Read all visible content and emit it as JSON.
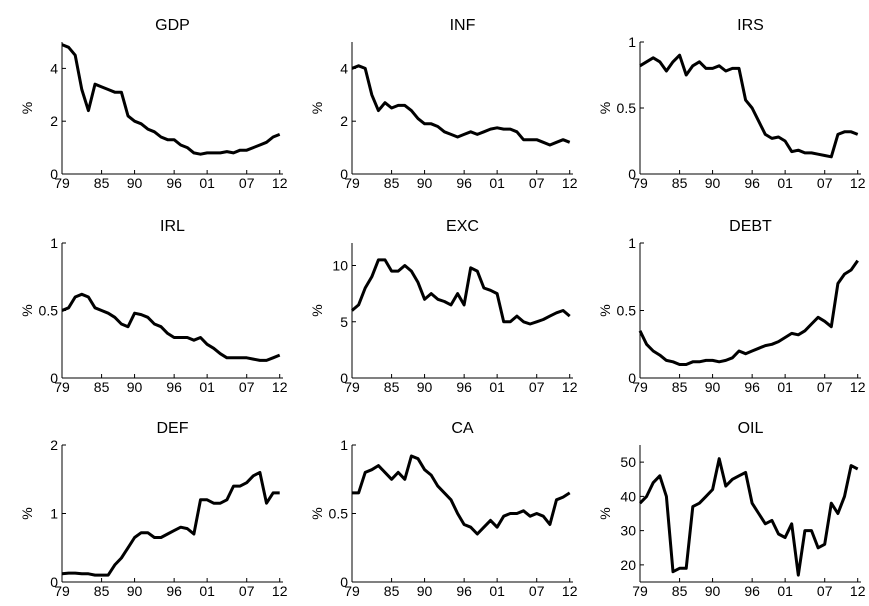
{
  "chart_data": [
    {
      "type": "line",
      "title": "GDP",
      "y_label": "%",
      "color": "#000000",
      "x": [
        1979,
        1980,
        1981,
        1982,
        1983,
        1984,
        1985,
        1986,
        1987,
        1988,
        1989,
        1990,
        1991,
        1992,
        1993,
        1994,
        1995,
        1996,
        1997,
        1998,
        1999,
        2000,
        2001,
        2002,
        2003,
        2004,
        2005,
        2006,
        2007,
        2008,
        2009,
        2010,
        2011,
        2012
      ],
      "values": [
        4.9,
        4.8,
        4.5,
        3.2,
        2.4,
        3.4,
        3.3,
        3.2,
        3.1,
        3.1,
        2.2,
        2.0,
        1.9,
        1.7,
        1.6,
        1.4,
        1.3,
        1.3,
        1.1,
        1.0,
        0.8,
        0.75,
        0.8,
        0.8,
        0.8,
        0.85,
        0.8,
        0.9,
        0.9,
        1.0,
        1.1,
        1.2,
        1.4,
        1.5
      ],
      "xlim": [
        1979,
        2012.5
      ],
      "xticks": [
        {
          "value": 1979,
          "label": "79"
        },
        {
          "value": 1985,
          "label": "85"
        },
        {
          "value": 1990,
          "label": "90"
        },
        {
          "value": 1996,
          "label": "96"
        },
        {
          "value": 2001,
          "label": "01"
        },
        {
          "value": 2007,
          "label": "07"
        },
        {
          "value": 2012,
          "label": "12"
        }
      ],
      "ylim": [
        0,
        5
      ],
      "yticks": [
        0,
        2,
        4
      ]
    },
    {
      "type": "line",
      "title": "INF",
      "y_label": "%",
      "color": "#000000",
      "x": [
        1979,
        1980,
        1981,
        1982,
        1983,
        1984,
        1985,
        1986,
        1987,
        1988,
        1989,
        1990,
        1991,
        1992,
        1993,
        1994,
        1995,
        1996,
        1997,
        1998,
        1999,
        2000,
        2001,
        2002,
        2003,
        2004,
        2005,
        2006,
        2007,
        2008,
        2009,
        2010,
        2011,
        2012
      ],
      "values": [
        4.0,
        4.1,
        4.0,
        3.0,
        2.4,
        2.7,
        2.5,
        2.6,
        2.6,
        2.4,
        2.1,
        1.9,
        1.9,
        1.8,
        1.6,
        1.5,
        1.4,
        1.5,
        1.6,
        1.5,
        1.6,
        1.7,
        1.75,
        1.7,
        1.7,
        1.6,
        1.3,
        1.3,
        1.3,
        1.2,
        1.1,
        1.2,
        1.3,
        1.2
      ],
      "xlim": [
        1979,
        2012.5
      ],
      "xticks": [
        {
          "value": 1979,
          "label": "79"
        },
        {
          "value": 1985,
          "label": "85"
        },
        {
          "value": 1990,
          "label": "90"
        },
        {
          "value": 1996,
          "label": "96"
        },
        {
          "value": 2001,
          "label": "01"
        },
        {
          "value": 2007,
          "label": "07"
        },
        {
          "value": 2012,
          "label": "12"
        }
      ],
      "ylim": [
        0,
        5
      ],
      "yticks": [
        0,
        2,
        4
      ]
    },
    {
      "type": "line",
      "title": "IRS",
      "y_label": "%",
      "color": "#000000",
      "x": [
        1979,
        1980,
        1981,
        1982,
        1983,
        1984,
        1985,
        1986,
        1987,
        1988,
        1989,
        1990,
        1991,
        1992,
        1993,
        1994,
        1995,
        1996,
        1997,
        1998,
        1999,
        2000,
        2001,
        2002,
        2003,
        2004,
        2005,
        2006,
        2007,
        2008,
        2009,
        2010,
        2011,
        2012
      ],
      "values": [
        0.82,
        0.85,
        0.88,
        0.85,
        0.78,
        0.85,
        0.9,
        0.75,
        0.82,
        0.85,
        0.8,
        0.8,
        0.82,
        0.78,
        0.8,
        0.8,
        0.56,
        0.5,
        0.4,
        0.3,
        0.27,
        0.28,
        0.25,
        0.17,
        0.18,
        0.16,
        0.16,
        0.15,
        0.14,
        0.13,
        0.3,
        0.32,
        0.32,
        0.3
      ],
      "xlim": [
        1979,
        2012.5
      ],
      "xticks": [
        {
          "value": 1979,
          "label": "79"
        },
        {
          "value": 1985,
          "label": "85"
        },
        {
          "value": 1990,
          "label": "90"
        },
        {
          "value": 1996,
          "label": "96"
        },
        {
          "value": 2001,
          "label": "01"
        },
        {
          "value": 2007,
          "label": "07"
        },
        {
          "value": 2012,
          "label": "12"
        }
      ],
      "ylim": [
        0,
        1
      ],
      "yticks": [
        0,
        0.5,
        1
      ]
    },
    {
      "type": "line",
      "title": "IRL",
      "y_label": "%",
      "color": "#000000",
      "x": [
        1979,
        1980,
        1981,
        1982,
        1983,
        1984,
        1985,
        1986,
        1987,
        1988,
        1989,
        1990,
        1991,
        1992,
        1993,
        1994,
        1995,
        1996,
        1997,
        1998,
        1999,
        2000,
        2001,
        2002,
        2003,
        2004,
        2005,
        2006,
        2007,
        2008,
        2009,
        2010,
        2011,
        2012
      ],
      "values": [
        0.5,
        0.52,
        0.6,
        0.62,
        0.6,
        0.52,
        0.5,
        0.48,
        0.45,
        0.4,
        0.38,
        0.48,
        0.47,
        0.45,
        0.4,
        0.38,
        0.33,
        0.3,
        0.3,
        0.3,
        0.28,
        0.3,
        0.25,
        0.22,
        0.18,
        0.15,
        0.15,
        0.15,
        0.15,
        0.14,
        0.13,
        0.13,
        0.15,
        0.17
      ],
      "xlim": [
        1979,
        2012.5
      ],
      "xticks": [
        {
          "value": 1979,
          "label": "79"
        },
        {
          "value": 1985,
          "label": "85"
        },
        {
          "value": 1990,
          "label": "90"
        },
        {
          "value": 1996,
          "label": "96"
        },
        {
          "value": 2001,
          "label": "01"
        },
        {
          "value": 2007,
          "label": "07"
        },
        {
          "value": 2012,
          "label": "12"
        }
      ],
      "ylim": [
        0,
        1
      ],
      "yticks": [
        0,
        0.5,
        1
      ]
    },
    {
      "type": "line",
      "title": "EXC",
      "y_label": "%",
      "color": "#000000",
      "x": [
        1979,
        1980,
        1981,
        1982,
        1983,
        1984,
        1985,
        1986,
        1987,
        1988,
        1989,
        1990,
        1991,
        1992,
        1993,
        1994,
        1995,
        1996,
        1997,
        1998,
        1999,
        2000,
        2001,
        2002,
        2003,
        2004,
        2005,
        2006,
        2007,
        2008,
        2009,
        2010,
        2011,
        2012
      ],
      "values": [
        6,
        6.5,
        8,
        9,
        10.5,
        10.5,
        9.5,
        9.5,
        10,
        9.5,
        8.5,
        7,
        7.5,
        7,
        6.8,
        6.5,
        7.5,
        6.5,
        9.8,
        9.5,
        8,
        7.8,
        7.5,
        5,
        5,
        5.5,
        5,
        4.8,
        5,
        5.2,
        5.5,
        5.8,
        6,
        5.5
      ],
      "xlim": [
        1979,
        2012.5
      ],
      "xticks": [
        {
          "value": 1979,
          "label": "79"
        },
        {
          "value": 1985,
          "label": "85"
        },
        {
          "value": 1990,
          "label": "90"
        },
        {
          "value": 1996,
          "label": "96"
        },
        {
          "value": 2001,
          "label": "01"
        },
        {
          "value": 2007,
          "label": "07"
        },
        {
          "value": 2012,
          "label": "12"
        }
      ],
      "ylim": [
        0,
        12
      ],
      "yticks": [
        0,
        5,
        10
      ]
    },
    {
      "type": "line",
      "title": "DEBT",
      "y_label": "%",
      "color": "#000000",
      "x": [
        1979,
        1980,
        1981,
        1982,
        1983,
        1984,
        1985,
        1986,
        1987,
        1988,
        1989,
        1990,
        1991,
        1992,
        1993,
        1994,
        1995,
        1996,
        1997,
        1998,
        1999,
        2000,
        2001,
        2002,
        2003,
        2004,
        2005,
        2006,
        2007,
        2008,
        2009,
        2010,
        2011,
        2012
      ],
      "values": [
        0.35,
        0.25,
        0.2,
        0.17,
        0.13,
        0.12,
        0.1,
        0.1,
        0.12,
        0.12,
        0.13,
        0.13,
        0.12,
        0.13,
        0.15,
        0.2,
        0.18,
        0.2,
        0.22,
        0.24,
        0.25,
        0.27,
        0.3,
        0.33,
        0.32,
        0.35,
        0.4,
        0.45,
        0.42,
        0.38,
        0.7,
        0.77,
        0.8,
        0.87
      ],
      "xlim": [
        1979,
        2012.5
      ],
      "xticks": [
        {
          "value": 1979,
          "label": "79"
        },
        {
          "value": 1985,
          "label": "85"
        },
        {
          "value": 1990,
          "label": "90"
        },
        {
          "value": 1996,
          "label": "96"
        },
        {
          "value": 2001,
          "label": "01"
        },
        {
          "value": 2007,
          "label": "07"
        },
        {
          "value": 2012,
          "label": "12"
        }
      ],
      "ylim": [
        0,
        1
      ],
      "yticks": [
        0,
        0.5,
        1
      ]
    },
    {
      "type": "line",
      "title": "DEF",
      "y_label": "%",
      "color": "#000000",
      "x": [
        1979,
        1980,
        1981,
        1982,
        1983,
        1984,
        1985,
        1986,
        1987,
        1988,
        1989,
        1990,
        1991,
        1992,
        1993,
        1994,
        1995,
        1996,
        1997,
        1998,
        1999,
        2000,
        2001,
        2002,
        2003,
        2004,
        2005,
        2006,
        2007,
        2008,
        2009,
        2010,
        2011,
        2012
      ],
      "values": [
        0.12,
        0.13,
        0.13,
        0.12,
        0.12,
        0.1,
        0.1,
        0.1,
        0.25,
        0.35,
        0.5,
        0.65,
        0.72,
        0.72,
        0.65,
        0.65,
        0.7,
        0.75,
        0.8,
        0.78,
        0.7,
        1.2,
        1.2,
        1.15,
        1.15,
        1.2,
        1.4,
        1.4,
        1.45,
        1.55,
        1.6,
        1.15,
        1.3,
        1.3
      ],
      "xlim": [
        1979,
        2012.5
      ],
      "xticks": [
        {
          "value": 1979,
          "label": "79"
        },
        {
          "value": 1985,
          "label": "85"
        },
        {
          "value": 1990,
          "label": "90"
        },
        {
          "value": 1996,
          "label": "96"
        },
        {
          "value": 2001,
          "label": "01"
        },
        {
          "value": 2007,
          "label": "07"
        },
        {
          "value": 2012,
          "label": "12"
        }
      ],
      "ylim": [
        0,
        2
      ],
      "yticks": [
        0,
        1,
        2
      ]
    },
    {
      "type": "line",
      "title": "CA",
      "y_label": "%",
      "color": "#000000",
      "x": [
        1979,
        1980,
        1981,
        1982,
        1983,
        1984,
        1985,
        1986,
        1987,
        1988,
        1989,
        1990,
        1991,
        1992,
        1993,
        1994,
        1995,
        1996,
        1997,
        1998,
        1999,
        2000,
        2001,
        2002,
        2003,
        2004,
        2005,
        2006,
        2007,
        2008,
        2009,
        2010,
        2011,
        2012
      ],
      "values": [
        0.65,
        0.65,
        0.8,
        0.82,
        0.85,
        0.8,
        0.75,
        0.8,
        0.75,
        0.92,
        0.9,
        0.82,
        0.78,
        0.7,
        0.65,
        0.6,
        0.5,
        0.42,
        0.4,
        0.35,
        0.4,
        0.45,
        0.4,
        0.48,
        0.5,
        0.5,
        0.52,
        0.48,
        0.5,
        0.48,
        0.42,
        0.6,
        0.62,
        0.65
      ],
      "xlim": [
        1979,
        2012.5
      ],
      "xticks": [
        {
          "value": 1979,
          "label": "79"
        },
        {
          "value": 1985,
          "label": "85"
        },
        {
          "value": 1990,
          "label": "90"
        },
        {
          "value": 1996,
          "label": "96"
        },
        {
          "value": 2001,
          "label": "01"
        },
        {
          "value": 2007,
          "label": "07"
        },
        {
          "value": 2012,
          "label": "12"
        }
      ],
      "ylim": [
        0,
        1
      ],
      "yticks": [
        0,
        0.5,
        1
      ]
    },
    {
      "type": "line",
      "title": "OIL",
      "y_label": "%",
      "color": "#000000",
      "x": [
        1979,
        1980,
        1981,
        1982,
        1983,
        1984,
        1985,
        1986,
        1987,
        1988,
        1989,
        1990,
        1991,
        1992,
        1993,
        1994,
        1995,
        1996,
        1997,
        1998,
        1999,
        2000,
        2001,
        2002,
        2003,
        2004,
        2005,
        2006,
        2007,
        2008,
        2009,
        2010,
        2011,
        2012
      ],
      "values": [
        38,
        40,
        44,
        46,
        40,
        18,
        19,
        19,
        37,
        38,
        40,
        42,
        51,
        43,
        45,
        46,
        47,
        38,
        35,
        32,
        33,
        29,
        28,
        32,
        17,
        30,
        30,
        25,
        26,
        38,
        35,
        40,
        49,
        48
      ],
      "xlim": [
        1979,
        2012.5
      ],
      "xticks": [
        {
          "value": 1979,
          "label": "79"
        },
        {
          "value": 1985,
          "label": "85"
        },
        {
          "value": 1990,
          "label": "90"
        },
        {
          "value": 1996,
          "label": "96"
        },
        {
          "value": 2001,
          "label": "01"
        },
        {
          "value": 2007,
          "label": "07"
        },
        {
          "value": 2012,
          "label": "12"
        }
      ],
      "ylim": [
        15,
        55
      ],
      "yticks": [
        20,
        30,
        40,
        50
      ]
    }
  ]
}
